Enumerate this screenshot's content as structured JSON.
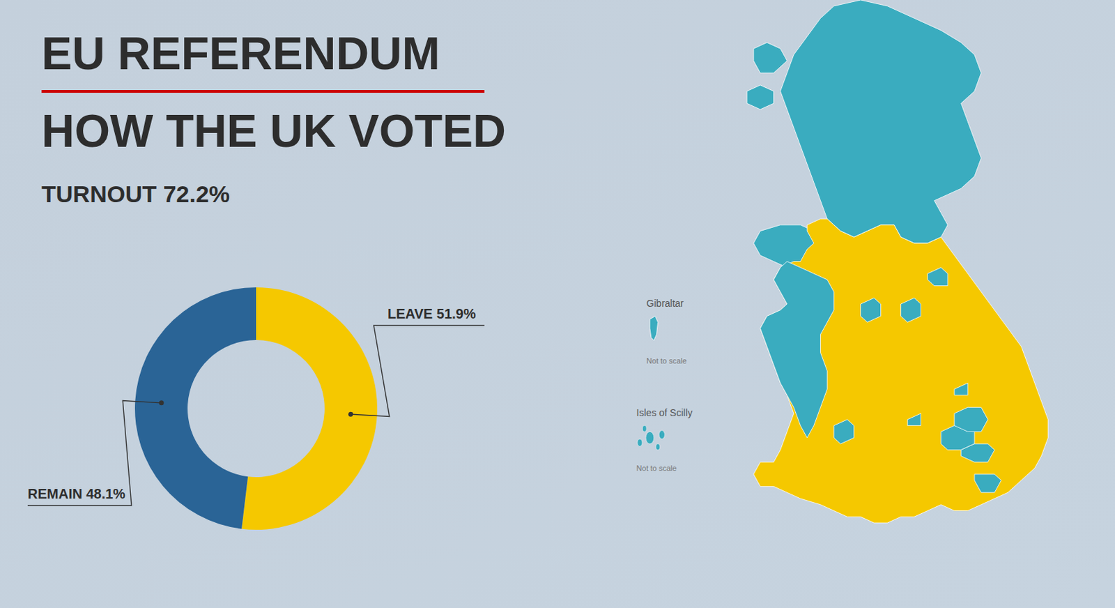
{
  "chart_data": {
    "type": "pie",
    "title": "EU REFERENDUM",
    "subtitle": "HOW THE UK VOTED",
    "values": [
      51.9,
      48.1
    ],
    "value_labels": [
      "LEAVE 51.9%",
      "REMAIN 48.1%"
    ],
    "data_labels": true,
    "colors": [
      "#F5C800",
      "#2A6496"
    ],
    "annotations": [
      "TURNOUT 72.2%",
      "Gibraltar",
      "Isles of Scilly",
      "Not to scale",
      "Not to scale"
    ]
  }
}
